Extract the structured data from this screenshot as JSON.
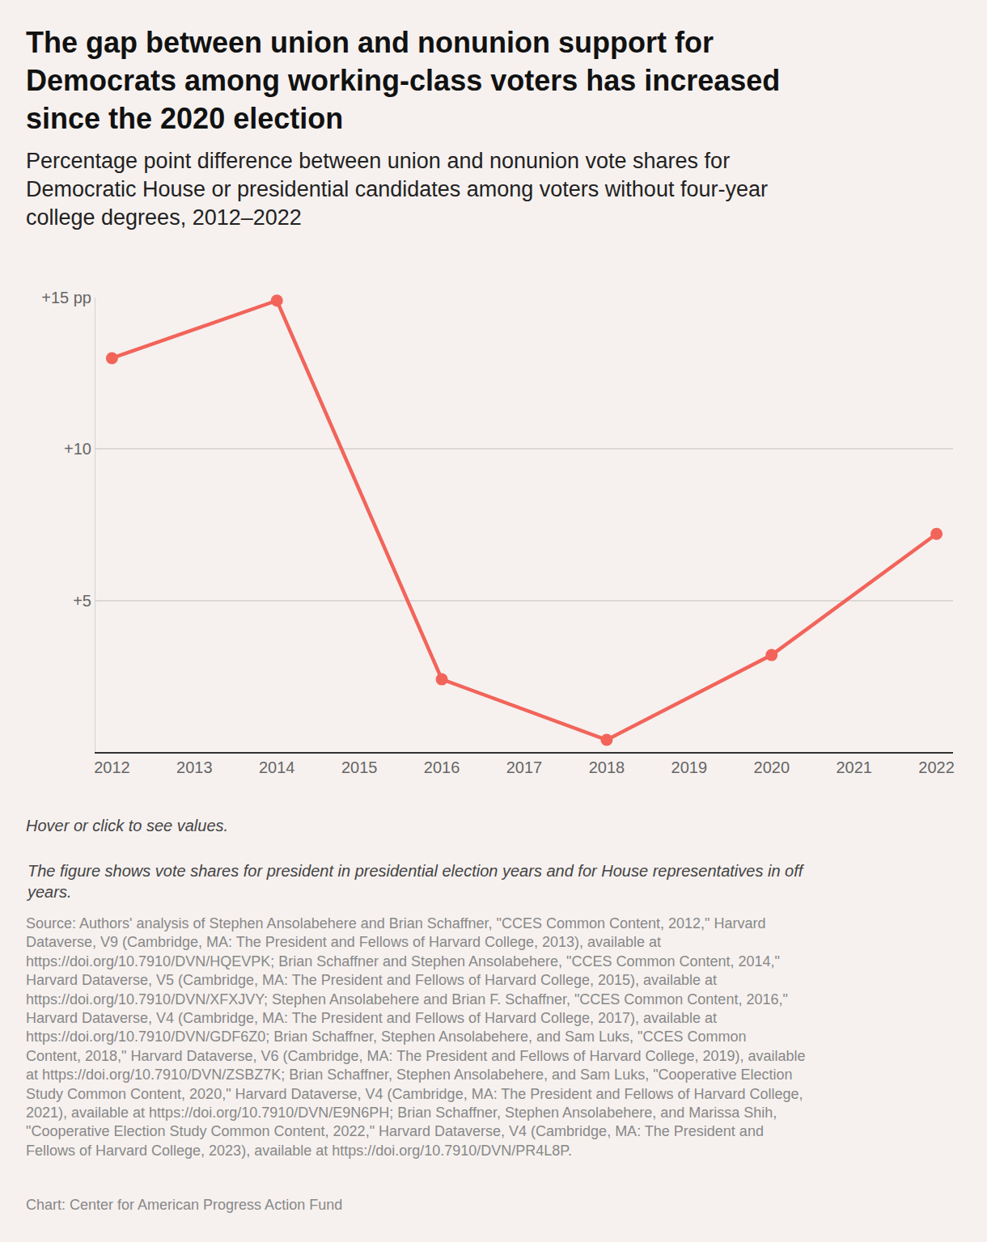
{
  "chart_data": {
    "type": "line",
    "title": "The gap between union and nonunion support for\nDemocrats among working-class voters has increased\nsince the 2020 election",
    "subtitle": "Percentage point difference between union and nonunion vote shares for\nDemocratic House or presidential candidates among voters without four-year\ncollege degrees, 2012–2022",
    "x": [
      2012,
      2014,
      2016,
      2018,
      2020,
      2022
    ],
    "values": [
      13,
      14.9,
      2.4,
      0.4,
      3.2,
      7.2
    ],
    "color": "#f2645a",
    "marker": "circle",
    "xlim": [
      2011.8,
      2022.2
    ],
    "xticks": [
      2012,
      2013,
      2014,
      2015,
      2016,
      2017,
      2018,
      2019,
      2020,
      2021,
      2022
    ],
    "ylim": [
      0,
      15
    ],
    "yticks": [
      {
        "value": 5,
        "label": "+5"
      },
      {
        "value": 10,
        "label": "+10"
      },
      {
        "value": 15,
        "label": "+15 pp"
      }
    ],
    "grid": true,
    "notes": [
      "Hover or click to see values.",
      "The figure shows vote shares for president in presidential election years and for House representatives in off\nyears."
    ],
    "source": "Source: Authors' analysis of Stephen Ansolabehere and Brian Schaffner, \"CCES Common Content, 2012,\" Harvard\nDataverse, V9 (Cambridge, MA: The President and Fellows of Harvard College, 2013), available at\nhttps://doi.org/10.7910/DVN/HQEVPK; Brian Schaffner and Stephen Ansolabehere, \"CCES Common Content, 2014,\"\nHarvard Dataverse, V5 (Cambridge, MA: The President and Fellows of Harvard College, 2015), available at\nhttps://doi.org/10.7910/DVN/XFXJVY; Stephen Ansolabehere and Brian F. Schaffner, \"CCES Common Content, 2016,\"\nHarvard Dataverse, V4 (Cambridge, MA: The President and Fellows of Harvard College, 2017), available at\nhttps://doi.org/10.7910/DVN/GDF6Z0; Brian Schaffner, Stephen Ansolabehere, and Sam Luks, \"CCES Common\nContent, 2018,\" Harvard Dataverse, V6 (Cambridge, MA: The President and Fellows of Harvard College, 2019), available\nat https://doi.org/10.7910/DVN/ZSBZ7K; Brian Schaffner, Stephen Ansolabehere, and Sam Luks, \"Cooperative Election\nStudy Common Content, 2020,\" Harvard Dataverse, V4 (Cambridge, MA: The President and Fellows of Harvard College,\n2021), available at https://doi.org/10.7910/DVN/E9N6PH; Brian Schaffner, Stephen Ansolabehere, and Marissa Shih,\n\"Cooperative Election Study Common Content, 2022,\" Harvard Dataverse, V4 (Cambridge, MA: The President and\nFellows of Harvard College, 2023), available at https://doi.org/10.7910/DVN/PR4L8P.",
    "credit": "Chart: Center for American Progress Action Fund"
  }
}
